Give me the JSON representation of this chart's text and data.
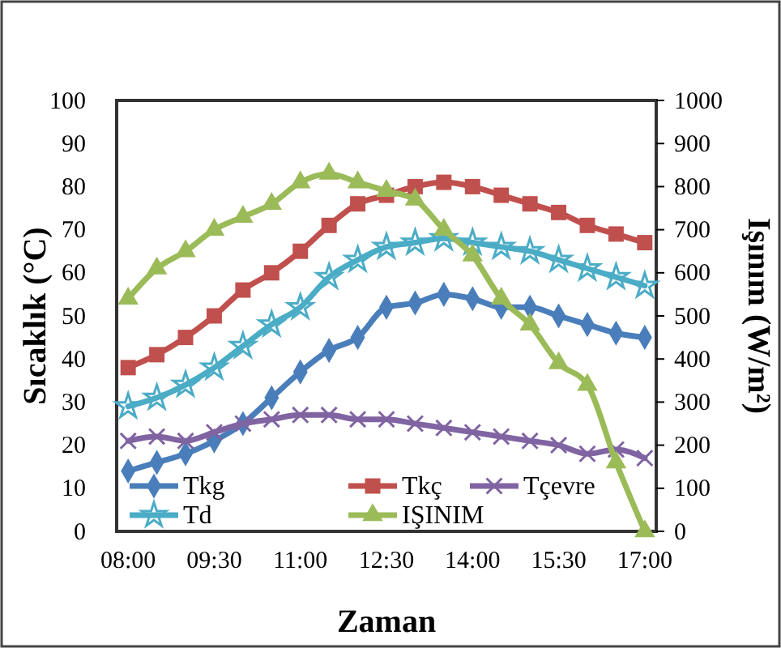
{
  "chart_data": {
    "type": "line",
    "xlabel": "Zaman",
    "ylabel": "Sıcaklık (°C)",
    "y2label": "Işınım (W/m²)",
    "x": [
      8,
      8.5,
      9,
      9.5,
      10,
      10.5,
      11,
      11.5,
      12,
      12.5,
      13,
      13.5,
      14,
      14.5,
      15,
      15.5,
      16,
      16.5,
      17
    ],
    "xlim": [
      7.8,
      17.2
    ],
    "xticks": [
      {
        "value": 8,
        "label": "08:00"
      },
      {
        "value": 9.5,
        "label": "09:30"
      },
      {
        "value": 11,
        "label": "11:00"
      },
      {
        "value": 12.5,
        "label": "12:30"
      },
      {
        "value": 14,
        "label": "14:00"
      },
      {
        "value": 15.5,
        "label": "15:30"
      },
      {
        "value": 17,
        "label": "17:00"
      }
    ],
    "ylim": [
      0,
      100
    ],
    "yticks": [
      0,
      10,
      20,
      30,
      40,
      50,
      60,
      70,
      80,
      90,
      100
    ],
    "y2lim": [
      0,
      1000
    ],
    "y2ticks": [
      0,
      100,
      200,
      300,
      400,
      500,
      600,
      700,
      800,
      900,
      1000
    ],
    "grid": false,
    "legend": "bottom",
    "line_style": "solid",
    "series": [
      {
        "name": "Tkg",
        "color": "#4a7ebb",
        "marker": "diamond",
        "values": [
          14,
          16,
          18,
          21,
          25,
          31,
          37,
          42,
          45,
          52,
          53,
          55,
          54,
          52,
          52,
          50,
          48,
          46,
          45
        ]
      },
      {
        "name": "Tkç",
        "color": "#c0504d",
        "marker": "square",
        "values": [
          38,
          41,
          45,
          50,
          56,
          60,
          65,
          71,
          76,
          78,
          80,
          81,
          80,
          78,
          76,
          74,
          71,
          69,
          67
        ]
      },
      {
        "name": "Tçevre",
        "color": "#8064a2",
        "marker": "cross",
        "values": [
          21,
          22,
          21,
          23,
          25,
          26,
          27,
          27,
          26,
          26,
          25,
          24,
          23,
          22,
          21,
          20,
          18,
          19,
          17
        ]
      },
      {
        "name": "Td",
        "color": "#4bacc6",
        "marker": "star",
        "values": [
          29,
          31,
          34,
          38,
          43,
          48,
          52,
          59,
          63,
          66,
          67,
          68,
          67,
          66,
          65,
          63,
          61,
          59,
          57
        ]
      },
      {
        "name": "IŞINIM",
        "color": "#9bbb59",
        "marker": "triangle",
        "axis": "y2",
        "values": [
          540,
          610,
          650,
          700,
          730,
          760,
          810,
          830,
          810,
          790,
          770,
          700,
          640,
          540,
          480,
          390,
          340,
          160,
          0
        ]
      }
    ]
  }
}
